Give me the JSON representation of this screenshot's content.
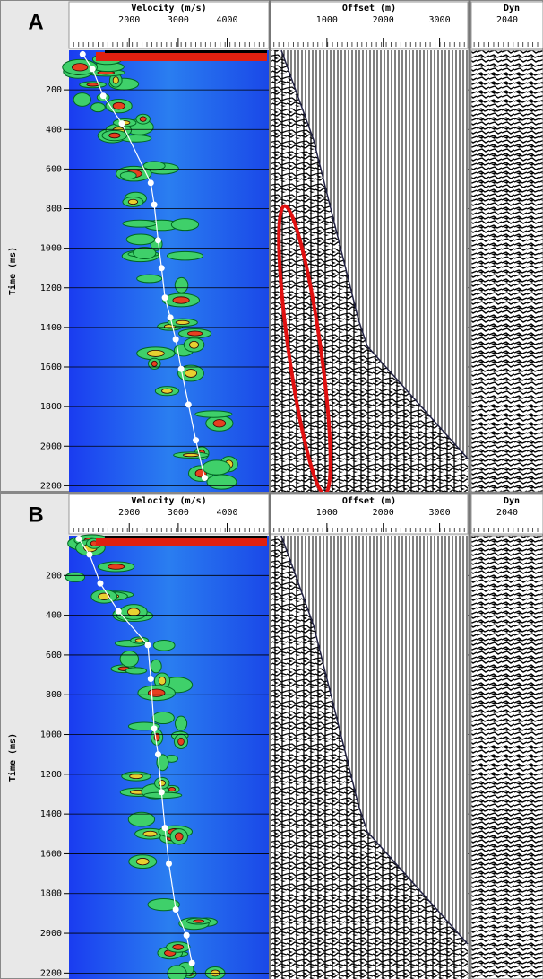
{
  "panels": [
    {
      "label": "A",
      "velocity_axis": {
        "title": "Velocity (m/s)",
        "range": [
          770,
          4850
        ],
        "ticks": [
          2000,
          3000,
          4000
        ]
      },
      "offset_axis": {
        "title": "Offset (m)",
        "range": [
          0,
          3500
        ],
        "ticks": [
          1000,
          2000,
          3000
        ]
      },
      "dyn_axis": {
        "title": "Dyn",
        "ticks": [
          2040
        ]
      },
      "time_axis": {
        "title": "Time (ms)",
        "range": [
          0,
          2230
        ],
        "ticks": [
          200,
          400,
          600,
          800,
          1000,
          1200,
          1400,
          1600,
          1800,
          2000,
          2200
        ]
      },
      "picks": {
        "time": [
          20,
          95,
          230,
          370,
          670,
          780,
          960,
          1100,
          1250,
          1350,
          1460,
          1610,
          1790,
          1970,
          2160
        ],
        "velocity": [
          1050,
          1250,
          1470,
          1850,
          2440,
          2510,
          2590,
          2660,
          2730,
          2840,
          2950,
          3060,
          3210,
          3360,
          3540
        ]
      }
    },
    {
      "label": "B",
      "velocity_axis": {
        "title": "Velocity (m/s)",
        "range": [
          770,
          4850
        ],
        "ticks": [
          2000,
          3000,
          4000
        ]
      },
      "offset_axis": {
        "title": "Offset (m)",
        "range": [
          0,
          3500
        ],
        "ticks": [
          1000,
          2000,
          3000
        ]
      },
      "dyn_axis": {
        "title": "Dyn",
        "ticks": [
          2040
        ]
      },
      "time_axis": {
        "title": "Time (ms)",
        "range": [
          0,
          2230
        ],
        "ticks": [
          200,
          400,
          600,
          800,
          1000,
          1200,
          1400,
          1600,
          1800,
          2000,
          2200
        ]
      },
      "picks": {
        "time": [
          15,
          95,
          240,
          380,
          550,
          720,
          970,
          1100,
          1290,
          1470,
          1650,
          1880,
          2010,
          2150
        ],
        "velocity": [
          970,
          1190,
          1410,
          1780,
          2380,
          2440,
          2510,
          2590,
          2660,
          2730,
          2810,
          2950,
          3170,
          3280
        ]
      }
    }
  ]
}
